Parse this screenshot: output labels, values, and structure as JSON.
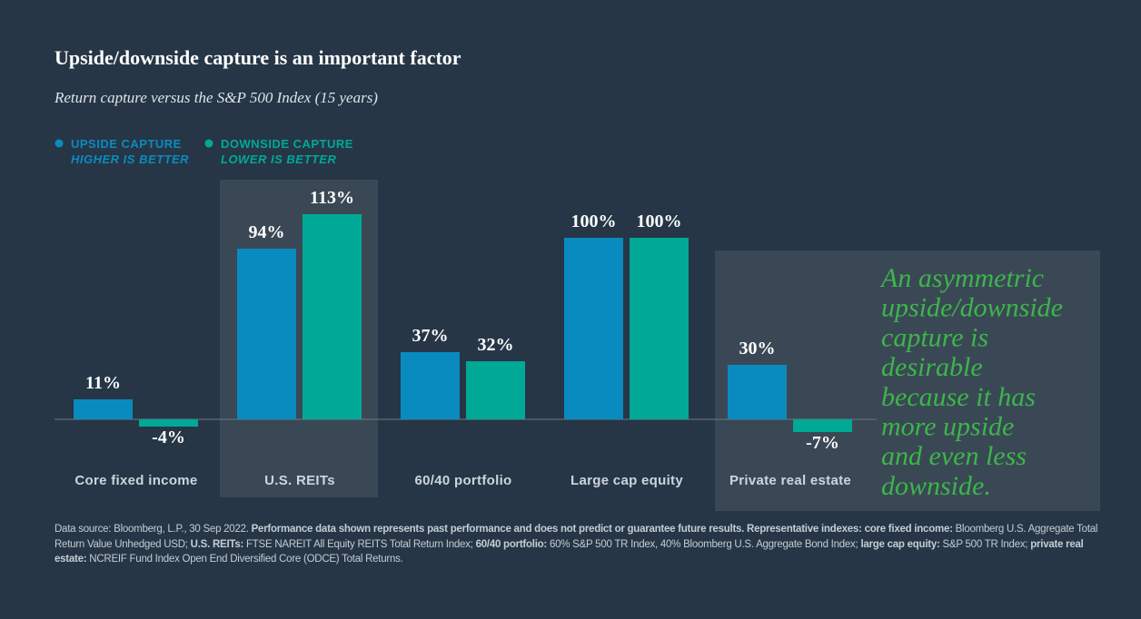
{
  "chart_data": {
    "type": "bar",
    "title": "Upside/downside capture is an important factor",
    "subtitle": "Return capture versus the S&P 500 Index (15 years)",
    "categories": [
      "Core fixed income",
      "U.S. REITs",
      "60/40 portfolio",
      "Large cap equity",
      "Private real estate"
    ],
    "highlighted": [
      false,
      true,
      false,
      false,
      true
    ],
    "series": [
      {
        "name": "UPSIDE CAPTURE",
        "note": "HIGHER IS BETTER",
        "color": "#0a8bbf",
        "values": [
          11,
          94,
          37,
          100,
          30
        ],
        "value_labels": [
          "11%",
          "94%",
          "37%",
          "100%",
          "30%"
        ]
      },
      {
        "name": "DOWNSIDE CAPTURE",
        "note": "LOWER IS BETTER",
        "color": "#00a996",
        "values": [
          -4,
          113,
          32,
          100,
          -7
        ],
        "value_labels": [
          "-4%",
          "113%",
          "32%",
          "100%",
          "-7%"
        ]
      }
    ],
    "ylim": [
      -30,
      132
    ],
    "annotation_lines": [
      "An asymmetric",
      "upside/downside",
      "capture is",
      "desirable",
      "because it has",
      "more upside",
      "and even less",
      "downside."
    ],
    "footnote": [
      {
        "text": "Data source: Bloomberg, L.P., 30 Sep 2022. ",
        "bold": false
      },
      {
        "text": "Performance data shown represents past performance and does not predict or guarantee future results. Representative indexes: core fixed income:",
        "bold": true
      },
      {
        "text": " Bloomberg U.S. Aggregate Total Return Value Unhedged USD; ",
        "bold": false
      },
      {
        "text": "U.S. REITs:",
        "bold": true
      },
      {
        "text": " FTSE NAREIT All Equity REITS Total Return Index; ",
        "bold": false
      },
      {
        "text": "60/40 portfolio:",
        "bold": true
      },
      {
        "text": " 60% S&P 500 TR Index, 40% Bloomberg U.S. Aggregate Bond Index; ",
        "bold": false
      },
      {
        "text": "large cap equity:",
        "bold": true
      },
      {
        "text": " S&P 500 TR Index; ",
        "bold": false
      },
      {
        "text": "private real estate:",
        "bold": true
      },
      {
        "text": " NCREIF Fund Index Open End Diversified Core (ODCE) Total Returns.",
        "bold": false
      }
    ]
  }
}
